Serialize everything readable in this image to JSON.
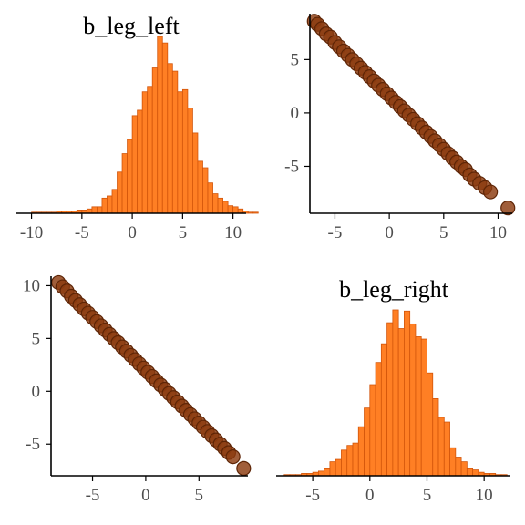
{
  "colors": {
    "hist_fill": "#ff7f24",
    "hist_edge": "#d2550a",
    "point_fill": "#8b3a0f",
    "point_edge": "#5e2506",
    "axis": "#000000",
    "tick_text": "#4d4d4d"
  },
  "chart_data": [
    {
      "panel": "top-left",
      "type": "histogram",
      "title": "b_leg_left",
      "xlabel": "",
      "ylabel": "",
      "xlim": [
        -11.5,
        11.3
      ],
      "x_ticks": [
        -10,
        -5,
        0,
        5,
        10
      ],
      "y_ticks": [],
      "bin_width": 0.5,
      "bins_start": -10,
      "counts": [
        1,
        1,
        1,
        1,
        1,
        2,
        2,
        2,
        2,
        3,
        3,
        4,
        6,
        6,
        14,
        16,
        22,
        38,
        55,
        68,
        90,
        95,
        112,
        117,
        134,
        163,
        157,
        138,
        131,
        112,
        114,
        97,
        74,
        48,
        42,
        28,
        18,
        14,
        11,
        7,
        6,
        4,
        2,
        1,
        1
      ]
    },
    {
      "panel": "top-right",
      "type": "scatter",
      "title": "",
      "xlabel": "",
      "ylabel": "",
      "xlim": [
        -7.3,
        11.3
      ],
      "ylim": [
        -9.4,
        9.3
      ],
      "x_ticks": [
        -5,
        0,
        5,
        10
      ],
      "y_ticks": [
        -5,
        0,
        5
      ],
      "points": [
        [
          -6.9,
          8.6
        ],
        [
          -6.6,
          8.3
        ],
        [
          -6.2,
          7.9
        ],
        [
          -5.8,
          7.4
        ],
        [
          -5.4,
          7.1
        ],
        [
          -5.0,
          6.6
        ],
        [
          -4.6,
          6.2
        ],
        [
          -4.2,
          5.8
        ],
        [
          -3.8,
          5.4
        ],
        [
          -3.4,
          5.0
        ],
        [
          -3.0,
          4.6
        ],
        [
          -2.6,
          4.2
        ],
        [
          -2.2,
          3.8
        ],
        [
          -1.8,
          3.4
        ],
        [
          -1.4,
          3.0
        ],
        [
          -1.0,
          2.6
        ],
        [
          -0.6,
          2.2
        ],
        [
          -0.2,
          1.8
        ],
        [
          0.2,
          1.4
        ],
        [
          0.6,
          1.0
        ],
        [
          1.0,
          0.6
        ],
        [
          1.4,
          0.2
        ],
        [
          1.8,
          -0.2
        ],
        [
          2.2,
          -0.6
        ],
        [
          2.6,
          -1.0
        ],
        [
          3.0,
          -1.4
        ],
        [
          3.4,
          -1.8
        ],
        [
          3.8,
          -2.2
        ],
        [
          4.2,
          -2.6
        ],
        [
          4.6,
          -3.0
        ],
        [
          5.0,
          -3.4
        ],
        [
          5.4,
          -3.8
        ],
        [
          5.8,
          -4.2
        ],
        [
          6.2,
          -4.6
        ],
        [
          6.6,
          -5.0
        ],
        [
          7.0,
          -5.3
        ],
        [
          7.4,
          -5.8
        ],
        [
          7.8,
          -6.2
        ],
        [
          8.3,
          -6.6
        ],
        [
          8.8,
          -7.0
        ],
        [
          9.3,
          -7.4
        ],
        [
          10.9,
          -8.9
        ]
      ]
    },
    {
      "panel": "bottom-left",
      "type": "scatter",
      "title": "",
      "xlabel": "",
      "ylabel": "",
      "xlim": [
        -8.9,
        9.6
      ],
      "ylim": [
        -8.0,
        10.9
      ],
      "x_ticks": [
        -5,
        0,
        5
      ],
      "y_ticks": [
        -5,
        0,
        5,
        10
      ],
      "points": [
        [
          -8.2,
          10.3
        ],
        [
          -7.8,
          9.9
        ],
        [
          -7.4,
          9.5
        ],
        [
          -7.0,
          9.0
        ],
        [
          -6.6,
          8.6
        ],
        [
          -6.2,
          8.2
        ],
        [
          -5.8,
          7.8
        ],
        [
          -5.4,
          7.4
        ],
        [
          -5.0,
          7.0
        ],
        [
          -4.6,
          6.6
        ],
        [
          -4.2,
          6.2
        ],
        [
          -3.8,
          5.8
        ],
        [
          -3.4,
          5.4
        ],
        [
          -3.0,
          5.0
        ],
        [
          -2.6,
          4.6
        ],
        [
          -2.2,
          4.2
        ],
        [
          -1.8,
          3.8
        ],
        [
          -1.4,
          3.4
        ],
        [
          -1.0,
          3.0
        ],
        [
          -0.6,
          2.6
        ],
        [
          -0.2,
          2.2
        ],
        [
          0.2,
          1.8
        ],
        [
          0.6,
          1.4
        ],
        [
          1.0,
          1.0
        ],
        [
          1.4,
          0.6
        ],
        [
          1.8,
          0.2
        ],
        [
          2.2,
          -0.2
        ],
        [
          2.6,
          -0.6
        ],
        [
          3.0,
          -1.0
        ],
        [
          3.4,
          -1.4
        ],
        [
          3.8,
          -1.8
        ],
        [
          4.2,
          -2.2
        ],
        [
          4.6,
          -2.6
        ],
        [
          5.0,
          -3.0
        ],
        [
          5.4,
          -3.4
        ],
        [
          5.8,
          -3.8
        ],
        [
          6.2,
          -4.2
        ],
        [
          6.6,
          -4.6
        ],
        [
          7.0,
          -5.0
        ],
        [
          7.4,
          -5.4
        ],
        [
          7.8,
          -5.8
        ],
        [
          8.2,
          -6.2
        ],
        [
          9.2,
          -7.3
        ]
      ]
    },
    {
      "panel": "bottom-right",
      "type": "histogram",
      "title": "b_leg_right",
      "xlabel": "",
      "ylabel": "",
      "xlim": [
        -8.2,
        12.3
      ],
      "x_ticks": [
        -5,
        0,
        5,
        10
      ],
      "y_ticks": [],
      "bin_width": 0.5,
      "bins_start": -7.5,
      "counts": [
        1,
        1,
        1,
        2,
        2,
        3,
        4,
        6,
        12,
        14,
        22,
        26,
        28,
        42,
        58,
        78,
        97,
        113,
        131,
        142,
        126,
        141,
        130,
        119,
        117,
        88,
        66,
        50,
        46,
        24,
        16,
        12,
        6,
        5,
        3,
        2,
        2,
        1,
        1
      ]
    }
  ]
}
